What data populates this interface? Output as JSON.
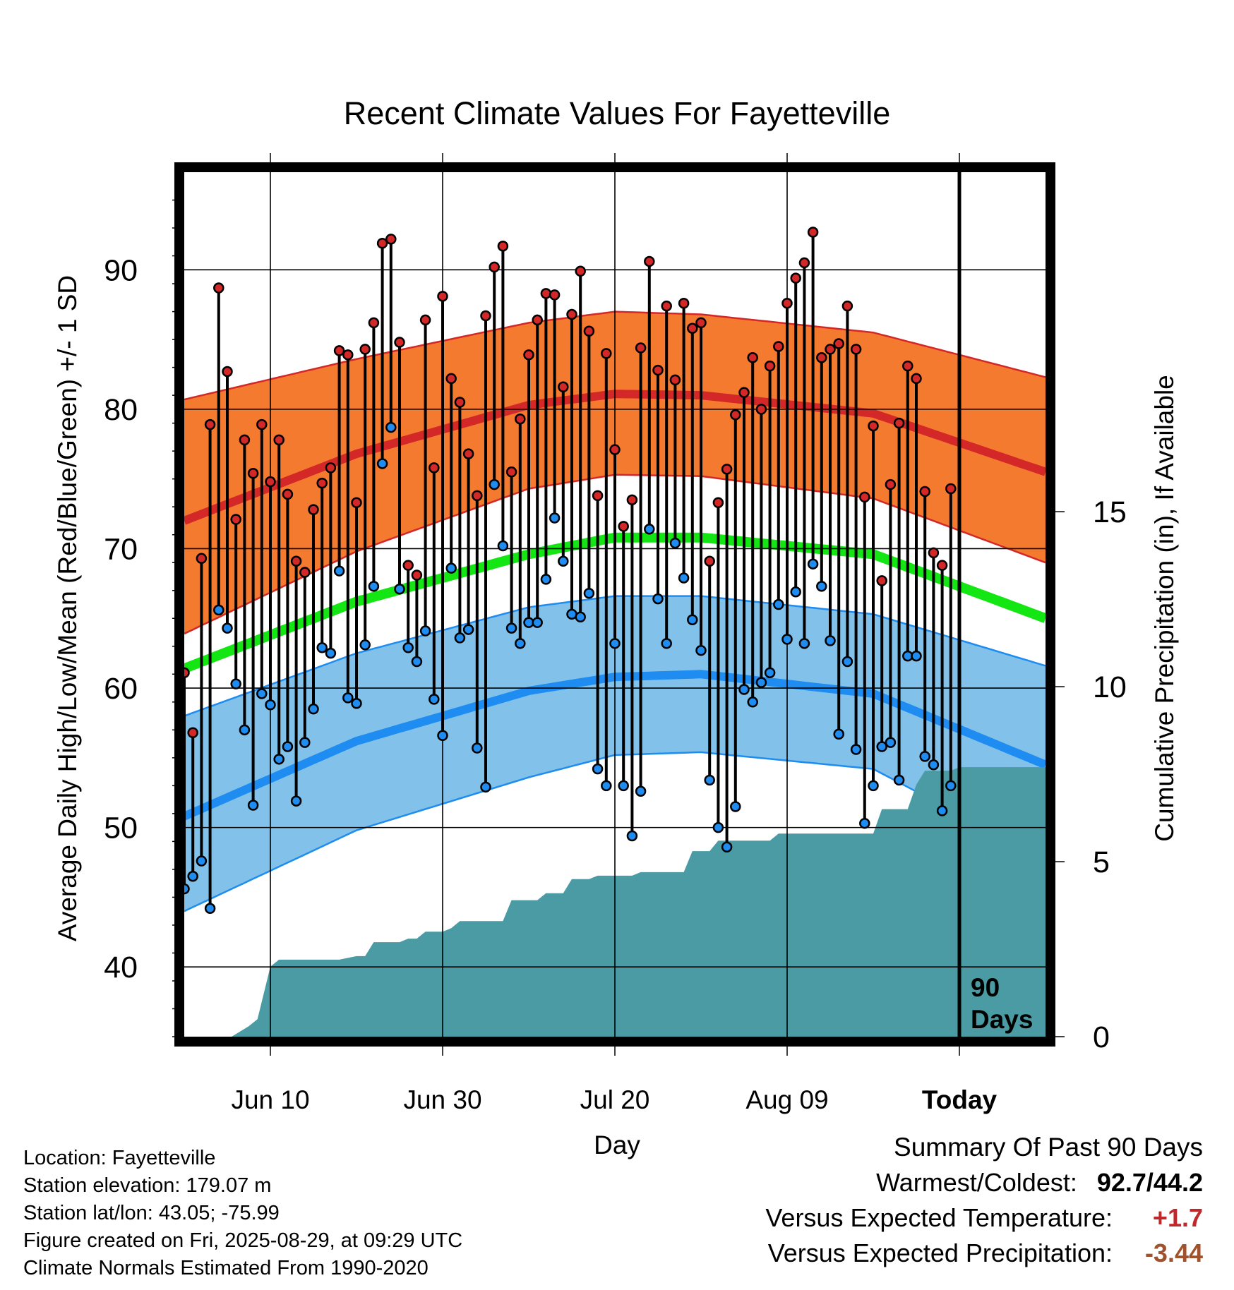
{
  "chart_data": {
    "type": "line",
    "title": "Recent Climate Values For Fayetteville",
    "xlabel": "Day",
    "ylabel": "Average Daily High/Low/Mean (Red/Blue/Green) +/- 1 SD",
    "y2label": "Cumulative Precipitation (in), If Available",
    "x_ticks": [
      "Jun 10",
      "Jun 30",
      "Jul 20",
      "Aug 09",
      "Today"
    ],
    "y_ticks": [
      "40",
      "50",
      "60",
      "70",
      "80",
      "90"
    ],
    "y2_ticks": [
      "0",
      "5",
      "10",
      "15"
    ],
    "ylim": [
      35,
      97
    ],
    "y2lim": [
      0,
      24.7
    ],
    "day_range": [
      0,
      100
    ],
    "today_day": 90,
    "today_label": [
      "90",
      "Days"
    ],
    "grid": true,
    "colors": {
      "high_band": "#f47a30",
      "high_band_edge": "#d42828",
      "high_mean": "#d42828",
      "low_band": "#82c2ea",
      "low_band_edge": "#1e8cf0",
      "low_mean": "#1e8cf0",
      "mean": "#14e614",
      "precip": "#4a9ba3",
      "high_marker": "#d42828",
      "low_marker": "#1e8cf0"
    },
    "normal_high_mean": {
      "x": [
        0,
        20,
        40,
        50,
        60,
        80,
        100
      ],
      "y": [
        72,
        76.8,
        80.3,
        81.1,
        81,
        79.7,
        75.5
      ]
    },
    "normal_high_upper": {
      "x": [
        0,
        20,
        40,
        50,
        60,
        80,
        100
      ],
      "y": [
        80.7,
        83.6,
        86.2,
        87,
        86.8,
        85.5,
        82.3
      ]
    },
    "normal_high_lower": {
      "x": [
        0,
        20,
        40,
        50,
        60,
        80,
        100
      ],
      "y": [
        63.9,
        69.8,
        74.3,
        75.3,
        75.2,
        73.6,
        69
      ]
    },
    "normal_mean": {
      "x": [
        0,
        20,
        40,
        50,
        60,
        80,
        100
      ],
      "y": [
        61.4,
        66.2,
        69.6,
        70.8,
        70.8,
        69.6,
        65
      ]
    },
    "normal_low_mean": {
      "x": [
        0,
        20,
        40,
        50,
        60,
        80,
        100
      ],
      "y": [
        50.8,
        56.2,
        59.8,
        60.8,
        61,
        59.6,
        54.5
      ]
    },
    "normal_low_upper": {
      "x": [
        0,
        20,
        40,
        50,
        60,
        80,
        100
      ],
      "y": [
        58,
        62.5,
        65.8,
        66.6,
        66.6,
        65.3,
        61.6
      ]
    },
    "normal_low_lower": {
      "x": [
        0,
        20,
        40,
        50,
        60,
        80,
        100
      ],
      "y": [
        44,
        49.8,
        53.6,
        55.2,
        55.4,
        54.2,
        47.7
      ]
    },
    "daily_high": [
      61.1,
      56.8,
      69.3,
      78.9,
      88.7,
      82.7,
      72.1,
      77.8,
      75.4,
      78.9,
      74.8,
      77.8,
      73.9,
      69.1,
      68.3,
      72.8,
      74.7,
      75.8,
      84.2,
      83.9,
      73.3,
      84.3,
      86.2,
      91.9,
      92.2,
      84.8,
      68.8,
      68.1,
      86.4,
      75.8,
      88.1,
      82.2,
      80.5,
      76.8,
      73.8,
      86.7,
      90.2,
      91.7,
      75.5,
      79.3,
      83.9,
      86.4,
      88.3,
      88.2,
      81.6,
      86.8,
      89.9,
      85.6,
      73.8,
      84,
      77.1,
      71.6,
      73.5,
      84.4,
      90.6,
      82.8,
      87.4,
      82.1,
      87.6,
      85.8,
      86.2,
      69.1,
      73.3,
      75.7,
      79.6,
      81.2,
      83.7,
      80,
      83.1,
      84.5,
      87.6,
      89.4,
      90.5,
      92.7,
      83.7,
      84.3,
      84.7,
      87.4,
      84.3,
      73.7,
      78.8,
      67.7,
      74.6,
      79,
      83.1,
      82.2,
      74.1,
      69.7,
      68.8,
      74.3
    ],
    "daily_low": [
      45.6,
      46.5,
      47.6,
      44.2,
      65.6,
      64.3,
      60.3,
      57,
      51.6,
      59.6,
      58.8,
      54.9,
      55.8,
      51.9,
      56.1,
      58.5,
      62.9,
      62.5,
      68.4,
      59.3,
      58.9,
      63.1,
      67.3,
      76.1,
      78.7,
      67.1,
      62.9,
      61.9,
      64.1,
      59.2,
      56.6,
      68.6,
      63.6,
      64.2,
      55.7,
      52.9,
      74.6,
      70.2,
      64.3,
      63.2,
      64.7,
      64.7,
      67.8,
      72.2,
      69.1,
      65.3,
      65.1,
      66.8,
      54.2,
      53,
      63.2,
      53,
      49.4,
      52.6,
      71.4,
      66.4,
      63.2,
      70.4,
      67.9,
      64.9,
      62.7,
      53.4,
      50,
      48.6,
      51.5,
      59.9,
      59,
      60.4,
      61.1,
      66,
      63.5,
      66.9,
      63.2,
      68.9,
      67.3,
      63.4,
      56.7,
      61.9,
      55.6,
      50.3,
      53,
      55.8,
      56.1,
      53.4,
      62.3,
      62.3,
      55.1,
      54.5,
      51.2,
      53
    ],
    "cumulative_precip": {
      "x": [
        5.5,
        7.5,
        8.5,
        9.5,
        10,
        11,
        18,
        20,
        21,
        22,
        23,
        24,
        25,
        26,
        27,
        28,
        29,
        30,
        31,
        32,
        33,
        34,
        35,
        36,
        37,
        38,
        39,
        40,
        41,
        42,
        43,
        44,
        45,
        46,
        47,
        48,
        49,
        50,
        51,
        52,
        53,
        54,
        55,
        56,
        57,
        58,
        59,
        60,
        61,
        62,
        63,
        64,
        65,
        66,
        67,
        68,
        69,
        70,
        71,
        72,
        73,
        74,
        75,
        76,
        77,
        78,
        79,
        80,
        81,
        82,
        83,
        84,
        85,
        86,
        87,
        88,
        89,
        90,
        100
      ],
      "y": [
        0,
        0.3,
        0.5,
        1.5,
        2,
        2.2,
        2.2,
        2.3,
        2.3,
        2.7,
        2.7,
        2.7,
        2.7,
        2.8,
        2.8,
        3,
        3,
        3,
        3.1,
        3.3,
        3.3,
        3.3,
        3.3,
        3.3,
        3.3,
        3.9,
        3.9,
        3.9,
        3.9,
        4.1,
        4.1,
        4.1,
        4.5,
        4.5,
        4.5,
        4.6,
        4.6,
        4.6,
        4.6,
        4.6,
        4.7,
        4.7,
        4.7,
        4.7,
        4.7,
        4.7,
        5.3,
        5.3,
        5.3,
        5.6,
        5.6,
        5.6,
        5.6,
        5.6,
        5.6,
        5.6,
        5.8,
        5.8,
        5.8,
        5.8,
        5.8,
        5.8,
        5.8,
        5.8,
        5.8,
        5.8,
        5.8,
        5.8,
        6.5,
        6.5,
        6.5,
        6.5,
        7.2,
        7.6,
        7.6,
        7.6,
        7.6,
        7.7,
        7.7
      ]
    }
  },
  "info": {
    "location": "Location: Fayetteville",
    "elevation": "Station elevation: 179.07 m",
    "latlon": "Station lat/lon: 43.05; -75.99",
    "created": "Figure created on Fri, 2025-08-29, at 09:29 UTC",
    "normals": "Climate Normals Estimated From 1990-2020"
  },
  "summary": {
    "title": "Summary Of Past 90 Days",
    "warmest_label": "Warmest/Coldest:",
    "warmest_value": "92.7/44.2",
    "temp_label": "Versus Expected Temperature:",
    "temp_value": "+1.7",
    "temp_color": "#c0282b",
    "precip_label": "Versus Expected Precipitation:",
    "precip_value": "-3.44",
    "precip_color": "#a0522d"
  }
}
